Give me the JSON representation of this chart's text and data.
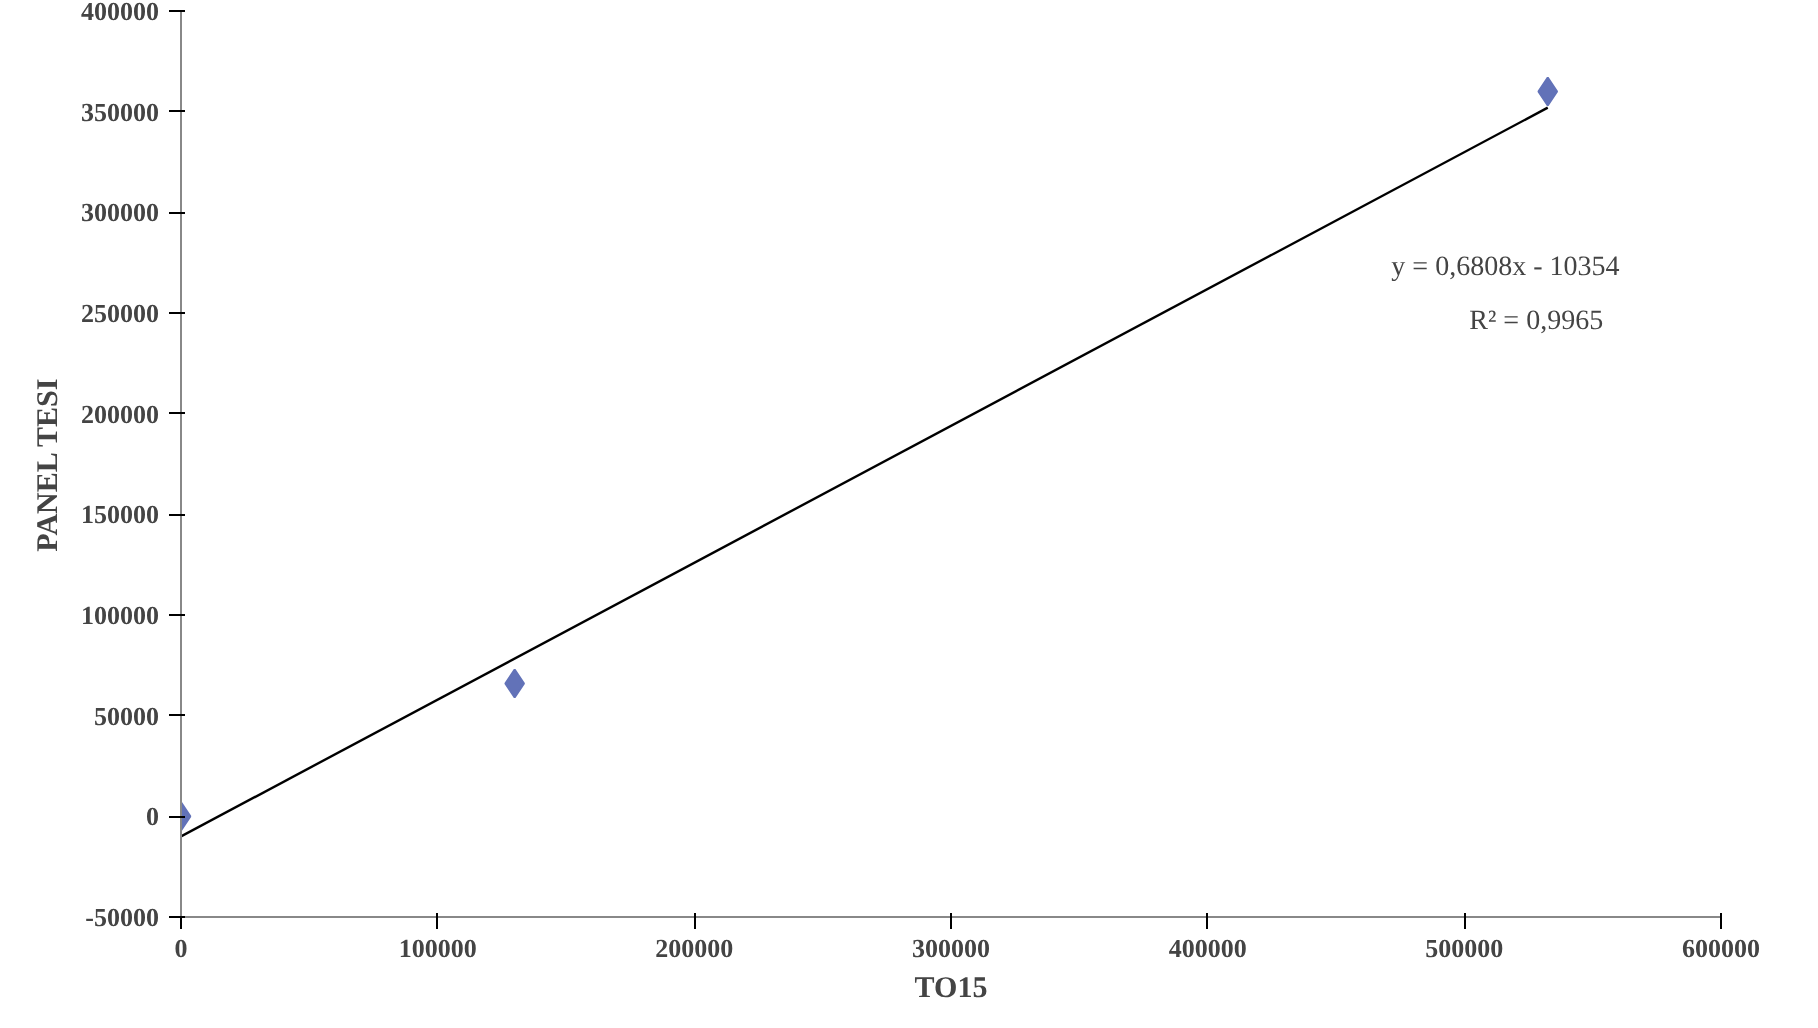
{
  "chart_data": {
    "type": "scatter",
    "xlabel": "TO15",
    "ylabel": "PANEL TESI",
    "x": [
      0,
      130000,
      532500
    ],
    "series": [
      {
        "type": "scatter",
        "color": "#6272b8",
        "values": [
          0,
          66000,
          360000
        ],
        "marker": "diamond"
      },
      {
        "type": "line",
        "color": "#000000",
        "x": [
          0,
          532500
        ],
        "values": [
          -10000,
          352000
        ],
        "marker": "none"
      }
    ],
    "annotations": [
      "y = 0,6808x - 10354",
      "R² = 0,9965"
    ],
    "xlim": [
      0,
      600000
    ],
    "xticks": [
      0,
      100000,
      200000,
      300000,
      400000,
      500000,
      600000
    ],
    "ylim": [
      -50000,
      400000
    ],
    "yticks": [
      -50000,
      0,
      50000,
      100000,
      150000,
      200000,
      250000,
      300000,
      350000,
      400000
    ],
    "grid": false
  }
}
